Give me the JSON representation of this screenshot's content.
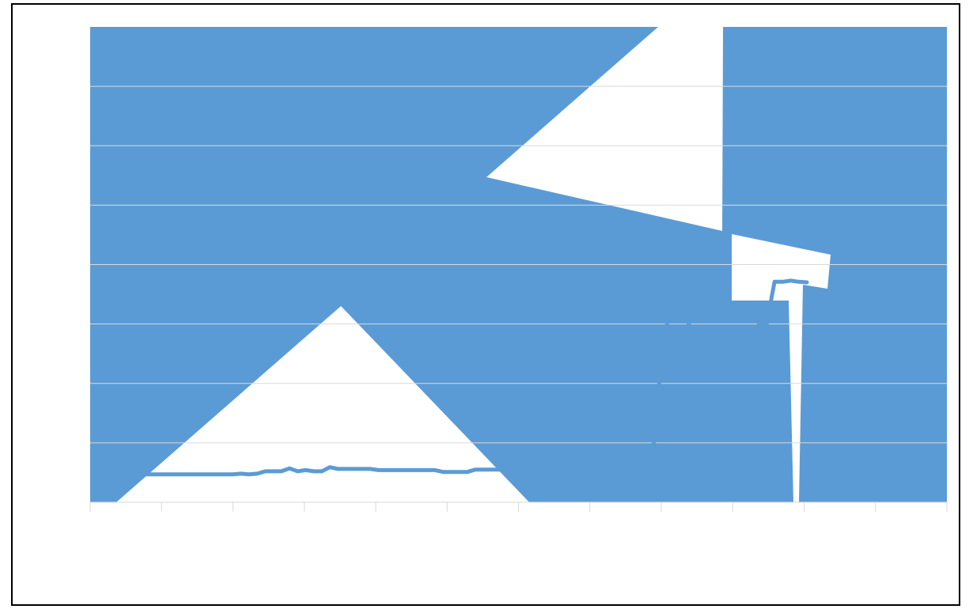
{
  "colors": {
    "series": "#5b9bd5",
    "grid": "#d9d9d9",
    "axis": "#d9d9d9",
    "background": "#ffffff",
    "frame": "#000000"
  },
  "chart_data": {
    "type": "line",
    "title": "",
    "xlabel": "",
    "ylabel": "",
    "x_tick_count": 12,
    "y_gridline_count": 8,
    "grid": true,
    "legend": "none",
    "series": [
      {
        "values": [
          0.47,
          0.47,
          0.47,
          0.47,
          0.47,
          0.47,
          0.47,
          0.47,
          0.47,
          0.47,
          0.47,
          0.47,
          0.48,
          0.47,
          0.48,
          0.52,
          0.52,
          0.52,
          0.57,
          0.52,
          0.54,
          0.52,
          0.52,
          0.59,
          0.56,
          0.56,
          0.56,
          0.56,
          0.56,
          0.54,
          0.54,
          0.54,
          0.54,
          0.54,
          0.54,
          0.54,
          0.54,
          0.51,
          0.51,
          0.51,
          0.51,
          0.55,
          0.55,
          0.55,
          0.55,
          0.63,
          0.63,
          0.61,
          0.64,
          0.63,
          0.63,
          0.63,
          0.63,
          0.63,
          0.63,
          0.64,
          0.65,
          0.73,
          0.73,
          0.73,
          0.87,
          0.87,
          0.94,
          0.9,
          2.4,
          3.25,
          3.12,
          3.1,
          2.85,
          2.71,
          2.71,
          2.58,
          2.58,
          2.5,
          2.71,
          2.71,
          2.98,
          2.98,
          3.71,
          3.71,
          3.73,
          3.71,
          3.7
        ]
      }
    ]
  }
}
